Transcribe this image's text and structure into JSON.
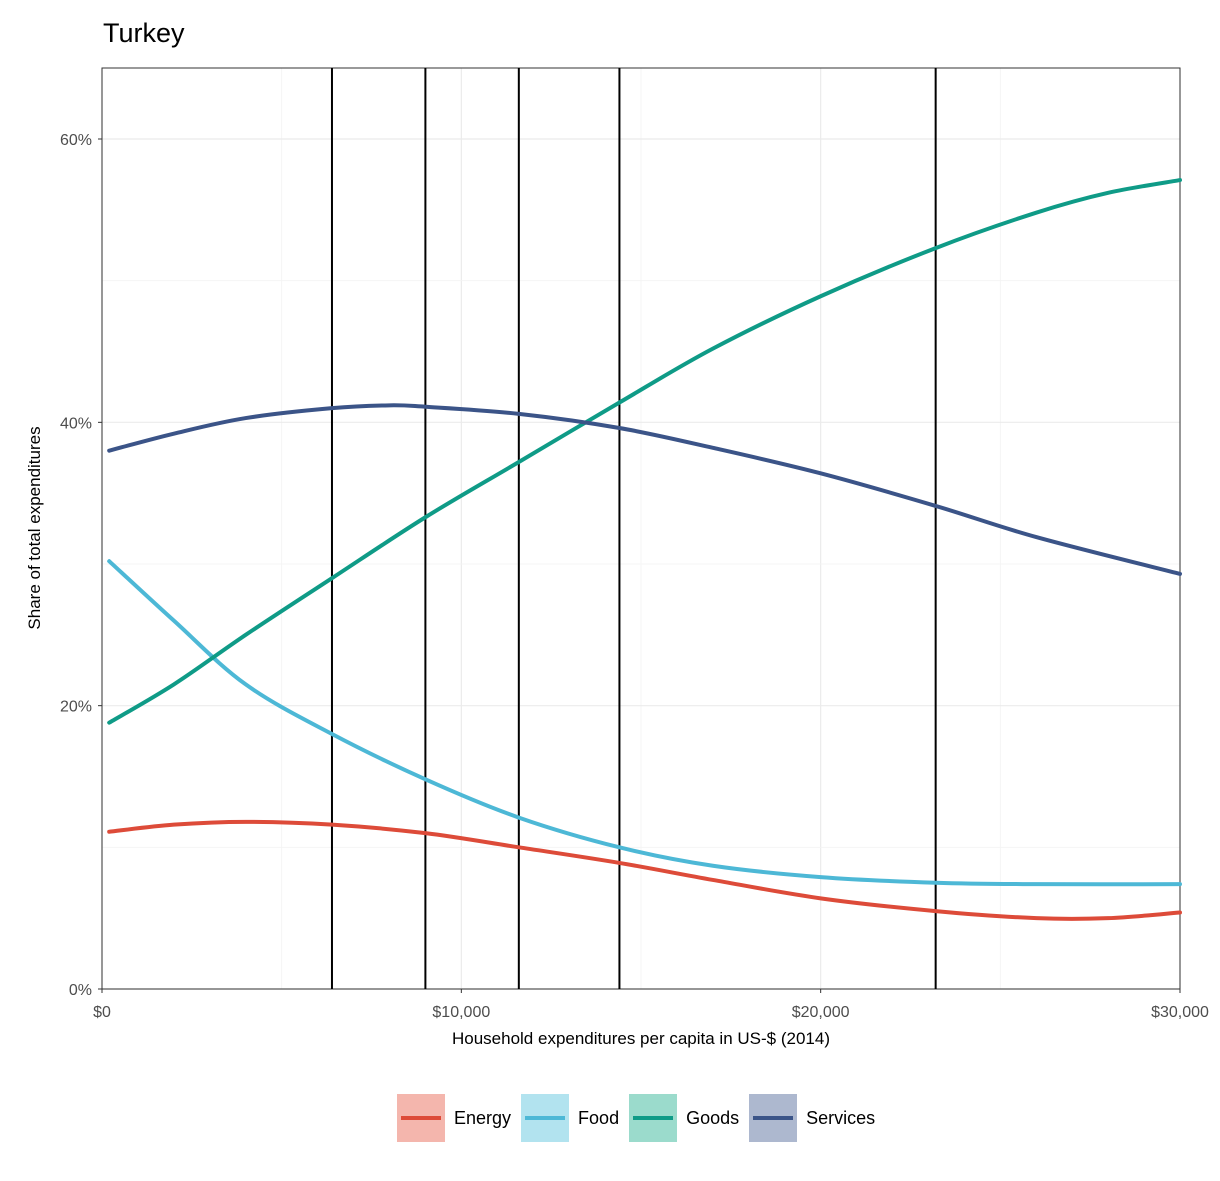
{
  "chart_data": {
    "type": "line",
    "title": "Turkey",
    "xlabel": "Household expenditures per capita in US-$ (2014)",
    "ylabel": "Share of total expenditures",
    "xlim": [
      0,
      30000
    ],
    "ylim": [
      0,
      0.65
    ],
    "x_ticks": [
      0,
      10000,
      20000,
      30000
    ],
    "x_tick_labels": [
      "$0",
      "$10,000",
      "$20,000",
      "$30,000"
    ],
    "y_ticks": [
      0,
      0.2,
      0.4,
      0.6
    ],
    "y_tick_labels": [
      "0%",
      "20%",
      "40%",
      "60%"
    ],
    "grid": true,
    "legend_position": "bottom",
    "vlines": [
      6400,
      9000,
      11600,
      14400,
      23200
    ],
    "series": [
      {
        "name": "Energy",
        "color": "#dd4b39",
        "legend_fill": "#f4b6ad",
        "x": [
          200,
          2000,
          4000,
          6400,
          9000,
          11600,
          14400,
          17000,
          20000,
          23200,
          26000,
          28000,
          30000
        ],
        "y": [
          0.111,
          0.116,
          0.118,
          0.116,
          0.11,
          0.1,
          0.089,
          0.077,
          0.064,
          0.055,
          0.05,
          0.05,
          0.054
        ]
      },
      {
        "name": "Food",
        "color": "#4db8d6",
        "legend_fill": "#b2e3ef",
        "x": [
          200,
          2000,
          4000,
          6400,
          9000,
          11600,
          14400,
          17000,
          20000,
          23200,
          26000,
          30000
        ],
        "y": [
          0.302,
          0.26,
          0.215,
          0.18,
          0.148,
          0.121,
          0.1,
          0.087,
          0.079,
          0.075,
          0.074,
          0.074
        ]
      },
      {
        "name": "Goods",
        "color": "#0f9b87",
        "legend_fill": "#9bdbcc",
        "x": [
          200,
          2000,
          4000,
          6400,
          9000,
          11600,
          14400,
          17000,
          20000,
          23200,
          26000,
          28000,
          30000
        ],
        "y": [
          0.188,
          0.215,
          0.25,
          0.29,
          0.333,
          0.372,
          0.414,
          0.452,
          0.489,
          0.523,
          0.548,
          0.562,
          0.571
        ]
      },
      {
        "name": "Services",
        "color": "#3b5488",
        "legend_fill": "#adb8cf",
        "x": [
          200,
          2000,
          4000,
          6400,
          8000,
          9000,
          11600,
          14400,
          17000,
          20000,
          23200,
          26000,
          30000
        ],
        "y": [
          0.38,
          0.392,
          0.403,
          0.41,
          0.412,
          0.411,
          0.406,
          0.396,
          0.382,
          0.364,
          0.341,
          0.319,
          0.293
        ]
      }
    ]
  }
}
